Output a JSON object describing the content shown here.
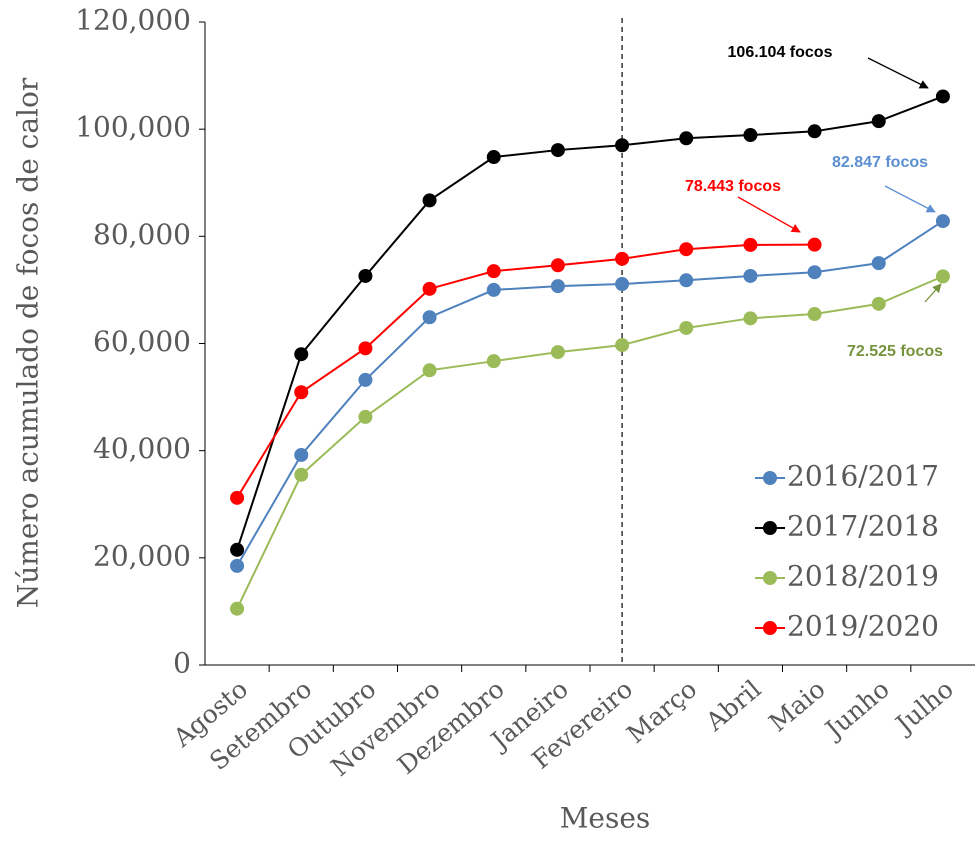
{
  "chart_data": {
    "type": "line",
    "x_label": "Meses",
    "y_label": "Número acumulado de focos de calor",
    "categories": [
      "Agosto",
      "Setembro",
      "Outubro",
      "Novembro",
      "Dezembro",
      "Janeiro",
      "Fevereiro",
      "Março",
      "Abril",
      "Maio",
      "Junho",
      "Julho"
    ],
    "series": [
      {
        "name": "2016/2017",
        "color": "#4f81bd",
        "values": [
          18500,
          39200,
          53200,
          64900,
          70000,
          70700,
          71100,
          71800,
          72600,
          73300,
          75000,
          82847
        ]
      },
      {
        "name": "2017/2018",
        "color": "#000000",
        "values": [
          21500,
          58000,
          72600,
          86700,
          94800,
          96100,
          97000,
          98300,
          98900,
          99600,
          101500,
          106104
        ]
      },
      {
        "name": "2018/2019",
        "color": "#9bbb59",
        "values": [
          10500,
          35500,
          46300,
          55000,
          56700,
          58400,
          59700,
          62900,
          64700,
          65500,
          67400,
          72525
        ]
      },
      {
        "name": "2019/2020",
        "color": "#ff0000",
        "values": [
          31200,
          50900,
          59100,
          70200,
          73500,
          74600,
          75800,
          77600,
          78400,
          78443,
          null,
          null
        ]
      }
    ],
    "ylim": [
      0,
      120000
    ],
    "yticks": [
      0,
      {
        "value": 20000,
        "label": "20,000"
      },
      {
        "value": 40000,
        "label": "40,000"
      },
      {
        "value": 60000,
        "label": "60,000"
      },
      {
        "value": 80000,
        "label": "80,000"
      },
      {
        "value": 100000,
        "label": "100,000"
      },
      {
        "value": 120000,
        "label": "120,000"
      }
    ],
    "legend": "lower right",
    "annotations": [
      {
        "text": "106.104 focos",
        "color": "#000000"
      },
      {
        "text": "82.847 focos",
        "color": "#5b8fd0"
      },
      {
        "text": "78.443 focos",
        "color": "#ff0000"
      },
      {
        "text": "72.525 focos",
        "color": "#77933c"
      }
    ]
  }
}
